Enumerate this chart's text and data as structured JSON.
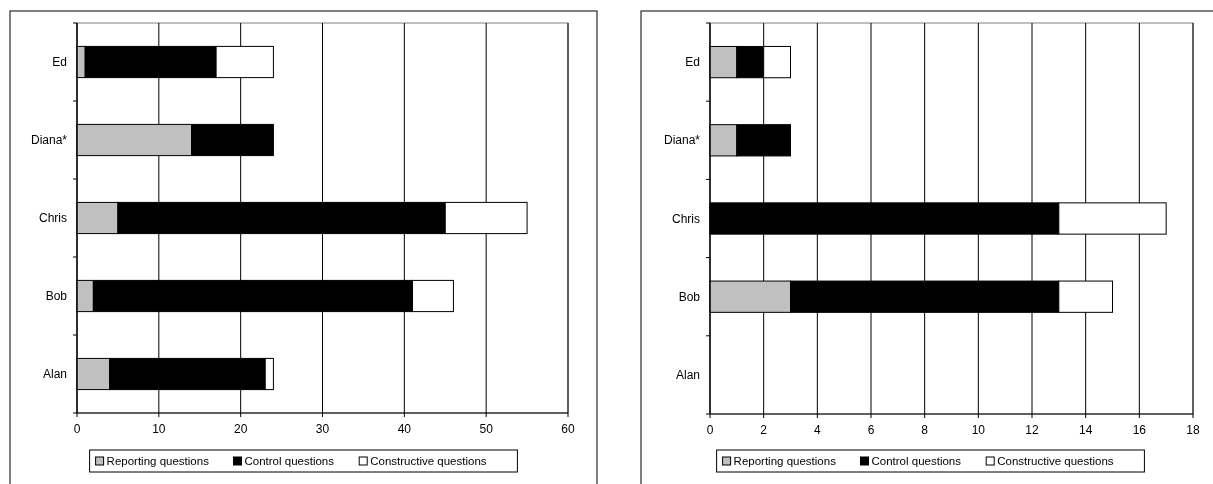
{
  "chart_data": [
    {
      "type": "bar",
      "orientation": "horizontal",
      "stacked": true,
      "categories": [
        "Ed",
        "Diana*",
        "Chris",
        "Bob",
        "Alan"
      ],
      "series": [
        {
          "name": "Reporting questions",
          "color": "#c0c0c0",
          "values": [
            1,
            14,
            5,
            2,
            4
          ]
        },
        {
          "name": "Control questions",
          "color": "#000000",
          "values": [
            16,
            10,
            40,
            39,
            19
          ]
        },
        {
          "name": "Constructive questions",
          "color": "#ffffff",
          "values": [
            7,
            0,
            10,
            5,
            1
          ]
        }
      ],
      "xlim": [
        0,
        60
      ],
      "xticks": [
        0,
        10,
        20,
        30,
        40,
        50,
        60
      ],
      "grid": "x",
      "legend": "bottom"
    },
    {
      "type": "bar",
      "orientation": "horizontal",
      "stacked": true,
      "categories": [
        "Ed",
        "Diana*",
        "Chris",
        "Bob",
        "Alan"
      ],
      "series": [
        {
          "name": "Reporting questions",
          "color": "#c0c0c0",
          "values": [
            1,
            1,
            0,
            3,
            0
          ]
        },
        {
          "name": "Control questions",
          "color": "#000000",
          "values": [
            1,
            2,
            13,
            10,
            0
          ]
        },
        {
          "name": "Constructive questions",
          "color": "#ffffff",
          "values": [
            1,
            0,
            4,
            2,
            0
          ]
        }
      ],
      "xlim": [
        0,
        18
      ],
      "xticks": [
        0,
        2,
        4,
        6,
        8,
        10,
        12,
        14,
        16,
        18
      ],
      "grid": "x",
      "legend": "bottom"
    }
  ]
}
